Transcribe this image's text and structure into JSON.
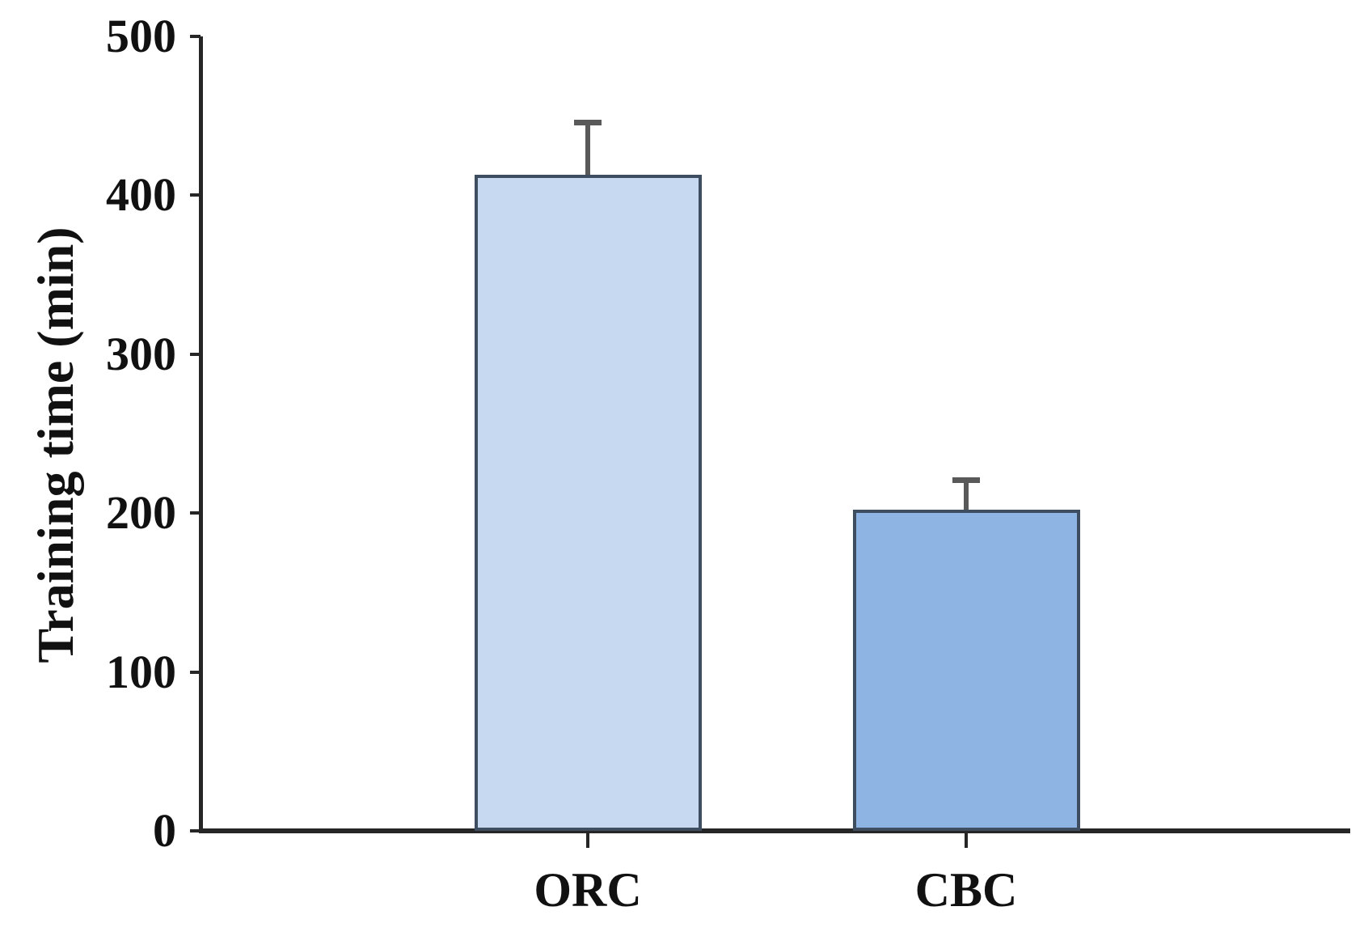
{
  "chart_data": {
    "type": "bar",
    "title": "",
    "xlabel": "",
    "ylabel": "Training time (min)",
    "categories": [
      "ORC",
      "CBC"
    ],
    "values": [
      413,
      202
    ],
    "error_plus": [
      32,
      18
    ],
    "ylim": [
      0,
      500
    ],
    "yticks": [
      0,
      100,
      200,
      300,
      400,
      500
    ],
    "grid": false,
    "legend_position": "none",
    "bar_fill_colors": [
      "#c6d9f1",
      "#8db4e2"
    ],
    "bar_border_color": "#3f4d60",
    "error_bar_color": "#595959",
    "axis_color": "#262626",
    "text_color": "#111111"
  }
}
